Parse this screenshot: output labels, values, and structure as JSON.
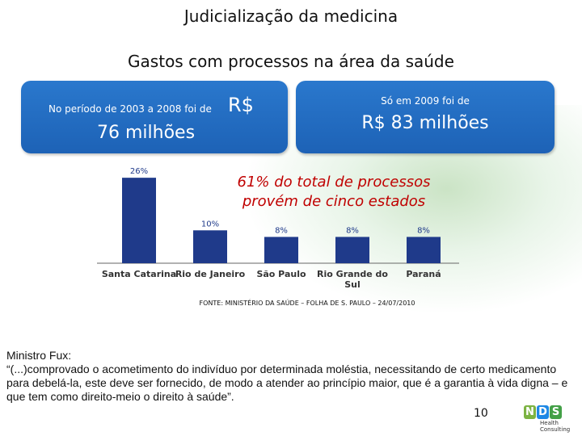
{
  "slide": {
    "title": "Judicialização da medicina",
    "subtitle": "Gastos com processos na área da saúde"
  },
  "box_left": {
    "small_text": "No período de 2003 a 2008 foi de",
    "currency": "R$",
    "amount": "76 milhões"
  },
  "box_right": {
    "small_text": "Só em 2009 foi de",
    "amount": "R$ 83 milhões"
  },
  "highlight": {
    "line1": "61% do total de processos",
    "line2": "provém de cinco estados"
  },
  "chart_data": {
    "type": "bar",
    "categories": [
      "Santa Catarina",
      "Rio de Janeiro",
      "São Paulo",
      "Rio Grande do Sul",
      "Paraná"
    ],
    "values": [
      26,
      10,
      8,
      8,
      8
    ],
    "data_labels": [
      "26%",
      "10%",
      "8%",
      "8%",
      "8%"
    ],
    "ylim": [
      0,
      28
    ],
    "grid": false,
    "legend": "none",
    "bar_color": "#1f3a8a"
  },
  "source": "FONTE: MINISTÉRIO DA SAÚDE – FOLHA DE S. PAULO – 24/07/2010",
  "quote": {
    "author": "Ministro Fux:",
    "text": "“(...)comprovado o acometimento do indivíduo por determinada moléstia, necessitando de certo medicamento para debelá-la, este deve ser fornecido, de modo a atender ao princípio maior, que é a garantia à vida digna – e que tem como direito-meio o direito à saúde”."
  },
  "page_number": "10",
  "logo": {
    "letters": [
      "N",
      "D",
      "S"
    ],
    "colors": [
      "#7cb342",
      "#1e88e5",
      "#43a047"
    ],
    "tagline": "Health Consulting"
  },
  "colors": {
    "box_blue": "#1f6cc4",
    "highlight_red": "#c00000"
  }
}
